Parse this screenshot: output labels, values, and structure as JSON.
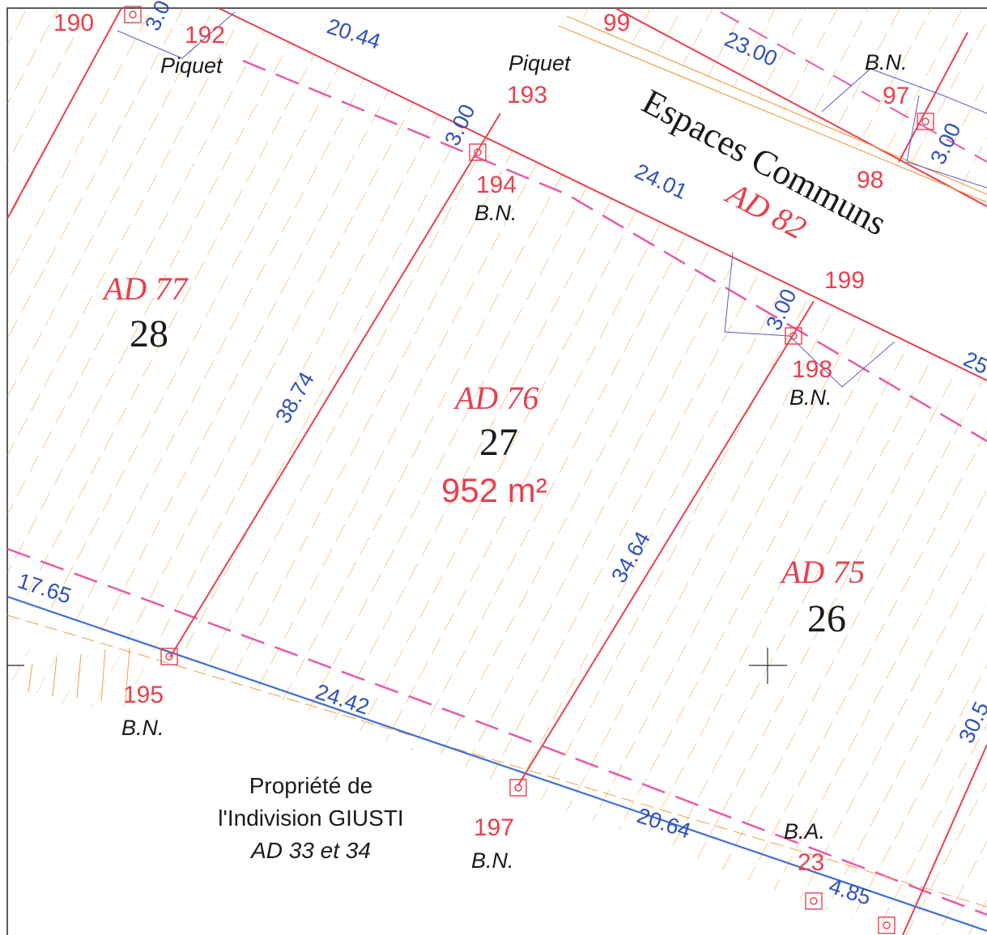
{
  "colors": {
    "boundary_red": "#e8404e",
    "hatch_orange": "#f0a04a",
    "dash_pink": "#e65aa8",
    "dimension_blue": "#2f52b8",
    "road_blue": "#3f6fcf",
    "text_black": "#1a1a1a"
  },
  "parcels": {
    "ad77": {
      "name": "AD 77",
      "number": "28"
    },
    "ad76": {
      "name": "AD 76",
      "number": "27",
      "area": "952 m²"
    },
    "ad75": {
      "name": "AD 75",
      "number": "26"
    },
    "ad82": {
      "name": "AD 82",
      "label": "Espaces Communs"
    }
  },
  "points": {
    "p190": "190",
    "p192": "192",
    "p193": "193",
    "p194": "194",
    "p195": "195",
    "p197": "197",
    "p198": "198",
    "p199": "199",
    "p97": "97",
    "p98": "98",
    "p99": "99",
    "p23": "23"
  },
  "markers": {
    "piquet": "Piquet",
    "bn": "B.N.",
    "ba": "B.A."
  },
  "dimensions": {
    "d2044": "20.44",
    "d2300": "23.00",
    "d300a": "3.00",
    "d300b": "3.00",
    "d300c": "3.00",
    "d2401": "24.01",
    "d3874": "38.74",
    "d3464": "34.64",
    "d1765": "17.65",
    "d2442": "24.42",
    "d2064": "20.64",
    "d485": "4.85",
    "d305": "30.5",
    "d25": "25",
    "d30": "3.0"
  },
  "neighbour": {
    "line1": "Propriété de",
    "line2": "l'Indivision GIUSTI",
    "line3": "AD 33 et 34"
  }
}
